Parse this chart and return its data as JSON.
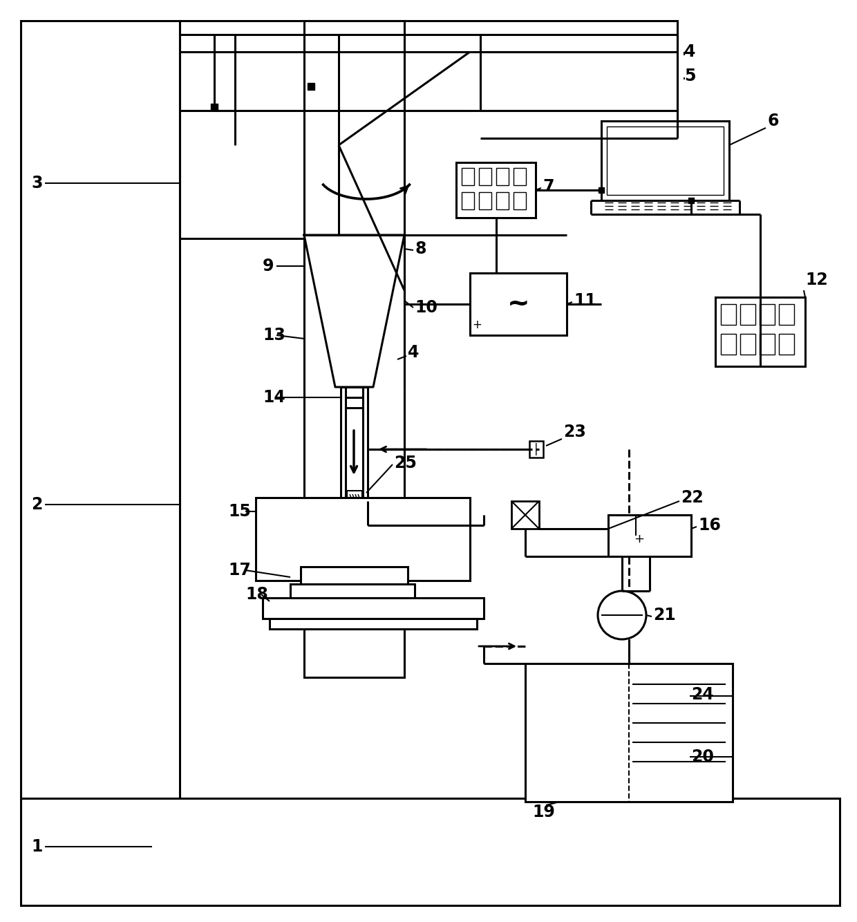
{
  "bg": "#ffffff",
  "lc": "#000000",
  "lw": 2.2,
  "fig_w": 12.4,
  "fig_h": 13.34,
  "dpi": 100
}
